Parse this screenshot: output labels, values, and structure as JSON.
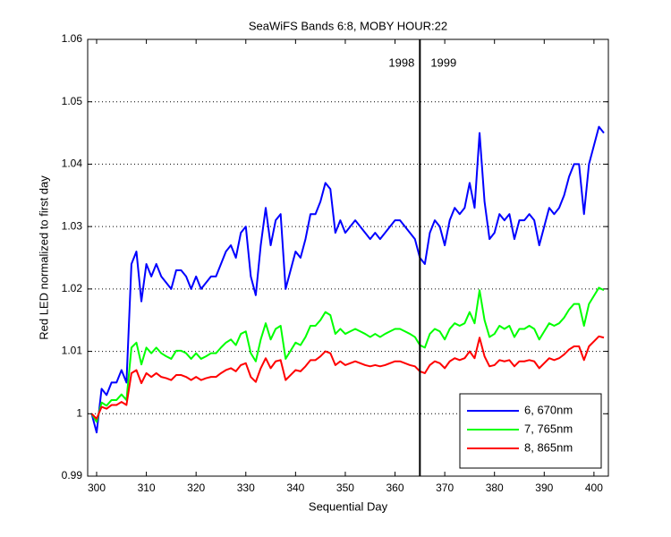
{
  "chart_data": {
    "type": "line",
    "title": "SeaWiFS Bands 6:8, MOBY HOUR:22",
    "x_label": "Sequential Day",
    "y_label": "Red LED normalized to first day",
    "x": [
      299,
      300,
      301,
      302,
      303,
      304,
      305,
      306,
      307,
      308,
      309,
      310,
      311,
      312,
      313,
      314,
      315,
      316,
      317,
      318,
      319,
      320,
      321,
      322,
      323,
      324,
      325,
      326,
      327,
      328,
      329,
      330,
      331,
      332,
      333,
      334,
      335,
      336,
      337,
      338,
      339,
      340,
      341,
      342,
      343,
      344,
      345,
      346,
      347,
      348,
      349,
      350,
      351,
      352,
      353,
      354,
      355,
      356,
      357,
      358,
      359,
      360,
      361,
      362,
      363,
      364,
      365,
      366,
      367,
      368,
      369,
      370,
      371,
      372,
      373,
      374,
      375,
      376,
      377,
      378,
      379,
      380,
      381,
      382,
      383,
      384,
      385,
      386,
      387,
      388,
      389,
      390,
      391,
      392,
      393,
      394,
      395,
      396,
      397,
      398,
      399,
      400,
      401,
      402
    ],
    "series": [
      {
        "name": "6, 670nm",
        "color": "#0000ff",
        "values": [
          1.0,
          0.997,
          1.004,
          1.003,
          1.005,
          1.005,
          1.007,
          1.005,
          1.024,
          1.026,
          1.018,
          1.024,
          1.022,
          1.024,
          1.022,
          1.021,
          1.02,
          1.023,
          1.023,
          1.022,
          1.02,
          1.022,
          1.02,
          1.021,
          1.022,
          1.022,
          1.024,
          1.026,
          1.027,
          1.025,
          1.029,
          1.03,
          1.022,
          1.019,
          1.027,
          1.033,
          1.027,
          1.031,
          1.032,
          1.02,
          1.023,
          1.026,
          1.025,
          1.028,
          1.032,
          1.032,
          1.034,
          1.037,
          1.036,
          1.029,
          1.031,
          1.029,
          1.03,
          1.031,
          1.03,
          1.029,
          1.028,
          1.029,
          1.028,
          1.029,
          1.03,
          1.031,
          1.031,
          1.03,
          1.029,
          1.028,
          1.025,
          1.024,
          1.029,
          1.031,
          1.03,
          1.027,
          1.031,
          1.033,
          1.032,
          1.033,
          1.037,
          1.033,
          1.045,
          1.034,
          1.028,
          1.029,
          1.032,
          1.031,
          1.032,
          1.028,
          1.031,
          1.031,
          1.032,
          1.031,
          1.027,
          1.03,
          1.033,
          1.032,
          1.033,
          1.035,
          1.038,
          1.04,
          1.04,
          1.032,
          1.04,
          1.043,
          1.046,
          1.045
        ]
      },
      {
        "name": "7, 765nm",
        "color": "#00ff00",
        "values": [
          1.0,
          0.9987,
          1.0018,
          1.0013,
          1.0022,
          1.0022,
          1.0031,
          1.0022,
          1.0106,
          1.0114,
          1.0079,
          1.0106,
          1.0097,
          1.0106,
          1.0097,
          1.0092,
          1.0088,
          1.0101,
          1.0101,
          1.0097,
          1.0088,
          1.0097,
          1.0088,
          1.0092,
          1.0097,
          1.0097,
          1.0106,
          1.0114,
          1.0119,
          1.011,
          1.0128,
          1.0132,
          1.0097,
          1.0084,
          1.0119,
          1.0145,
          1.0119,
          1.0136,
          1.0141,
          1.0088,
          1.0101,
          1.0114,
          1.011,
          1.0123,
          1.0141,
          1.0141,
          1.015,
          1.0163,
          1.0158,
          1.0128,
          1.0136,
          1.0128,
          1.0132,
          1.0136,
          1.0132,
          1.0128,
          1.0123,
          1.0128,
          1.0123,
          1.0128,
          1.0132,
          1.0136,
          1.0136,
          1.0132,
          1.0128,
          1.0123,
          1.011,
          1.0106,
          1.0128,
          1.0136,
          1.0132,
          1.0119,
          1.0136,
          1.0145,
          1.0141,
          1.0145,
          1.0163,
          1.0145,
          1.0198,
          1.015,
          1.0123,
          1.0128,
          1.0141,
          1.0136,
          1.0141,
          1.0123,
          1.0136,
          1.0136,
          1.0141,
          1.0136,
          1.0119,
          1.0132,
          1.0145,
          1.0141,
          1.0145,
          1.0154,
          1.0167,
          1.0176,
          1.0176,
          1.0141,
          1.0176,
          1.0189,
          1.0202,
          1.0198
        ]
      },
      {
        "name": "8, 865nm",
        "color": "#ff0000",
        "values": [
          1.0,
          0.9992,
          1.0011,
          1.0008,
          1.0014,
          1.0014,
          1.0019,
          1.0014,
          1.0065,
          1.007,
          1.0049,
          1.0065,
          1.0059,
          1.0065,
          1.0059,
          1.0057,
          1.0054,
          1.0062,
          1.0062,
          1.0059,
          1.0054,
          1.0059,
          1.0054,
          1.0057,
          1.0059,
          1.0059,
          1.0065,
          1.007,
          1.0073,
          1.0068,
          1.0078,
          1.0081,
          1.0059,
          1.0051,
          1.0073,
          1.0089,
          1.0073,
          1.0084,
          1.0086,
          1.0054,
          1.0062,
          1.007,
          1.0068,
          1.0076,
          1.0086,
          1.0086,
          1.0092,
          1.01,
          1.0097,
          1.0078,
          1.0084,
          1.0078,
          1.0081,
          1.0084,
          1.0081,
          1.0078,
          1.0076,
          1.0078,
          1.0076,
          1.0078,
          1.0081,
          1.0084,
          1.0084,
          1.0081,
          1.0078,
          1.0076,
          1.0068,
          1.0065,
          1.0078,
          1.0084,
          1.0081,
          1.0073,
          1.0084,
          1.0089,
          1.0086,
          1.0089,
          1.01,
          1.0089,
          1.0122,
          1.0092,
          1.0076,
          1.0078,
          1.0086,
          1.0084,
          1.0086,
          1.0076,
          1.0084,
          1.0084,
          1.0086,
          1.0084,
          1.0073,
          1.0081,
          1.0089,
          1.0086,
          1.0089,
          1.0095,
          1.0103,
          1.0108,
          1.0108,
          1.0086,
          1.0108,
          1.0116,
          1.0124,
          1.0122
        ]
      }
    ],
    "xlim": [
      298.2,
      402.9
    ],
    "ylim": [
      0.99,
      1.06
    ],
    "xticks": [
      300,
      310,
      320,
      330,
      340,
      350,
      360,
      370,
      380,
      390,
      400
    ],
    "yticks": [
      0.99,
      1,
      1.01,
      1.02,
      1.03,
      1.04,
      1.05,
      1.06
    ],
    "grid": "y",
    "legend": "lower right",
    "vline": {
      "x": 365,
      "left_label": "1998",
      "right_label": "1999"
    }
  }
}
